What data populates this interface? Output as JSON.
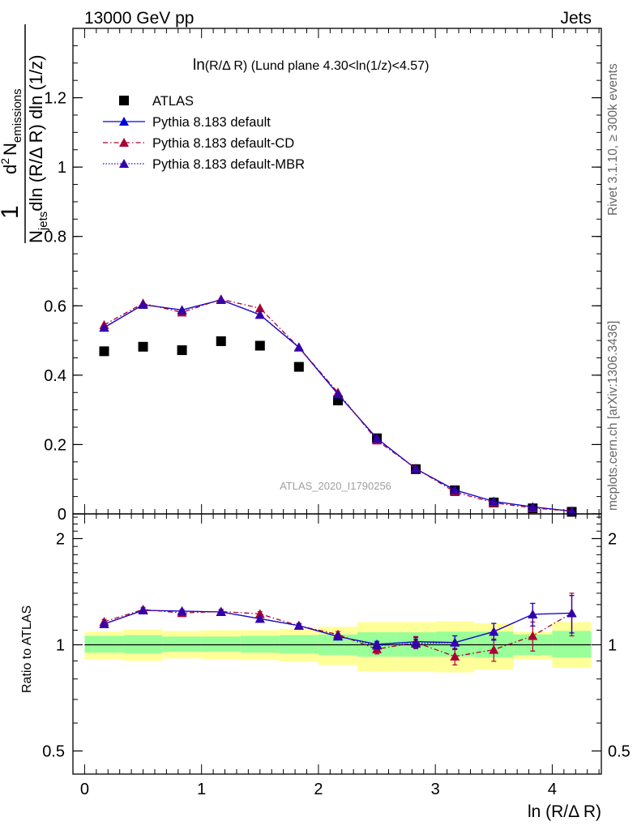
{
  "header": {
    "energy_label": "13000 GeV pp",
    "category_label": "Jets"
  },
  "side_labels": {
    "rivet": "Rivet 3.1.10, ≥ 300k events",
    "mcplots": "mcplots.cern.ch [arXiv:1306.3436]"
  },
  "colors": {
    "atlas": "#000000",
    "default": "#0000dd",
    "cd": "#aa0033",
    "mbr": "#3300aa",
    "band_inner": "#99ff99",
    "band_outer": "#ffff99"
  },
  "chart_data": [
    {
      "type": "scatter",
      "panel": "main",
      "title": "ln(R/Δ R) (Lund plane 4.30<ln(1/z)<4.57)",
      "title_parts": {
        "main": "ln",
        "paren": "(R/Δ R)",
        "rest": " (Lund plane 4.30<ln(1/z)<4.57)"
      },
      "ylabel": "1/N_jets d²N_emissions / dln(R/Δ R) dln(1/z)",
      "ylabel_parts": {
        "one": "1",
        "N": "N",
        "jets": "jets",
        "dln_mid": "dln (R/Δ R) dln (1/z)",
        "d2": "d",
        "two": "2",
        "Nem": "N",
        "emissions": "emissions"
      },
      "analysis_label": "ATLAS_2020_I1790256",
      "xlim": [
        -0.1,
        4.42
      ],
      "ylim": [
        0,
        1.4
      ],
      "yticks": [
        0,
        0.2,
        0.4,
        0.6,
        0.8,
        1,
        1.2
      ],
      "ytick_labels": [
        "0",
        "0.2",
        "0.4",
        "0.6",
        "0.8",
        "1",
        "1.2"
      ],
      "x": [
        0.167,
        0.5,
        0.833,
        1.167,
        1.5,
        1.833,
        2.167,
        2.5,
        2.833,
        3.167,
        3.5,
        3.833,
        4.167
      ],
      "series": [
        {
          "name": "ATLAS",
          "style": "data",
          "values": [
            0.469,
            0.482,
            0.472,
            0.498,
            0.485,
            0.424,
            0.327,
            0.218,
            0.129,
            0.068,
            0.033,
            0.016,
            0.006
          ],
          "errors": [
            0.006,
            0.006,
            0.006,
            0.006,
            0.006,
            0.006,
            0.005,
            0.004,
            0.003,
            0.002,
            0.002,
            0.001,
            0.001
          ]
        },
        {
          "name": "Pythia 8.183 default",
          "style": "solid",
          "values": [
            0.537,
            0.603,
            0.588,
            0.617,
            0.574,
            0.48,
            0.345,
            0.218,
            0.13,
            0.069,
            0.036,
            0.02,
            0.008
          ],
          "errors": [
            0.007,
            0.007,
            0.007,
            0.007,
            0.007,
            0.006,
            0.005,
            0.004,
            0.003,
            0.002,
            0.002,
            0.002,
            0.001
          ]
        },
        {
          "name": "Pythia 8.183 default-CD",
          "style": "dashdot",
          "values": [
            0.545,
            0.607,
            0.581,
            0.619,
            0.593,
            0.48,
            0.35,
            0.212,
            0.131,
            0.063,
            0.032,
            0.017,
            0.008
          ],
          "errors": [
            0.01,
            0.01,
            0.01,
            0.01,
            0.01,
            0.009,
            0.008,
            0.006,
            0.004,
            0.003,
            0.002,
            0.002,
            0.001
          ]
        },
        {
          "name": "Pythia 8.183 default-MBR",
          "style": "dotted",
          "values": [
            0.538,
            0.604,
            0.587,
            0.617,
            0.575,
            0.481,
            0.346,
            0.217,
            0.13,
            0.069,
            0.036,
            0.02,
            0.008
          ],
          "errors": [
            0.007,
            0.007,
            0.007,
            0.007,
            0.007,
            0.006,
            0.005,
            0.004,
            0.003,
            0.002,
            0.002,
            0.002,
            0.001
          ]
        }
      ]
    },
    {
      "type": "scatter",
      "panel": "ratio",
      "ylabel": "Ratio to ATLAS",
      "xlabel": "ln (R/Δ R)",
      "xlim": [
        -0.1,
        4.42
      ],
      "ylim": [
        0.43,
        2.35
      ],
      "scale": "log",
      "yticks": [
        0.5,
        1,
        2
      ],
      "ytick_labels": [
        "0.5",
        "1",
        "2"
      ],
      "xticks": [
        0,
        1,
        2,
        3,
        4
      ],
      "xtick_labels": [
        "0",
        "1",
        "2",
        "3",
        "4"
      ],
      "bins": [
        [
          0,
          0.333
        ],
        [
          0.333,
          0.667
        ],
        [
          0.667,
          1.0
        ],
        [
          1.0,
          1.333
        ],
        [
          1.333,
          1.667
        ],
        [
          1.667,
          2.0
        ],
        [
          2.0,
          2.333
        ],
        [
          2.333,
          2.667
        ],
        [
          2.667,
          3.0
        ],
        [
          3.0,
          3.333
        ],
        [
          3.333,
          3.667
        ],
        [
          3.667,
          4.0
        ],
        [
          4.0,
          4.333
        ]
      ],
      "band_inner": [
        [
          0.95,
          1.06
        ],
        [
          0.945,
          1.065
        ],
        [
          0.955,
          1.055
        ],
        [
          0.955,
          1.055
        ],
        [
          0.95,
          1.06
        ],
        [
          0.945,
          1.065
        ],
        [
          0.935,
          1.07
        ],
        [
          0.925,
          1.085
        ],
        [
          0.925,
          1.085
        ],
        [
          0.925,
          1.09
        ],
        [
          0.92,
          1.09
        ],
        [
          0.935,
          1.07
        ],
        [
          0.92,
          1.095
        ]
      ],
      "band_outer": [
        [
          0.91,
          1.09
        ],
        [
          0.9,
          1.105
        ],
        [
          0.915,
          1.095
        ],
        [
          0.91,
          1.1
        ],
        [
          0.905,
          1.1
        ],
        [
          0.895,
          1.11
        ],
        [
          0.875,
          1.125
        ],
        [
          0.84,
          1.16
        ],
        [
          0.84,
          1.16
        ],
        [
          0.835,
          1.165
        ],
        [
          0.85,
          1.15
        ],
        [
          0.91,
          1.09
        ],
        [
          0.86,
          1.16
        ]
      ],
      "series": [
        {
          "name": "Pythia 8.183 default",
          "style": "solid",
          "values": [
            1.145,
            1.252,
            1.246,
            1.239,
            1.185,
            1.133,
            1.056,
            1.003,
            1.02,
            1.015,
            1.09,
            1.22,
            1.23
          ],
          "errors": [
            0.012,
            0.012,
            0.012,
            0.012,
            0.012,
            0.012,
            0.014,
            0.02,
            0.03,
            0.045,
            0.06,
            0.09,
            0.15
          ]
        },
        {
          "name": "Pythia 8.183 default-CD",
          "style": "dashdot",
          "values": [
            1.162,
            1.259,
            1.231,
            1.243,
            1.223,
            1.132,
            1.07,
            0.972,
            1.015,
            0.927,
            0.968,
            1.06,
            1.23
          ],
          "errors": [
            0.018,
            0.018,
            0.018,
            0.018,
            0.018,
            0.018,
            0.02,
            0.03,
            0.04,
            0.05,
            0.07,
            0.1,
            0.17
          ]
        },
        {
          "name": "Pythia 8.183 default-MBR",
          "style": "dotted",
          "values": [
            1.147,
            1.253,
            1.244,
            1.239,
            1.186,
            1.134,
            1.058,
            0.995,
            1.008,
            1.015,
            1.09,
            1.22,
            1.23
          ],
          "errors": [
            0.012,
            0.012,
            0.012,
            0.012,
            0.012,
            0.012,
            0.014,
            0.02,
            0.03,
            0.045,
            0.06,
            0.09,
            0.15
          ]
        }
      ]
    }
  ]
}
